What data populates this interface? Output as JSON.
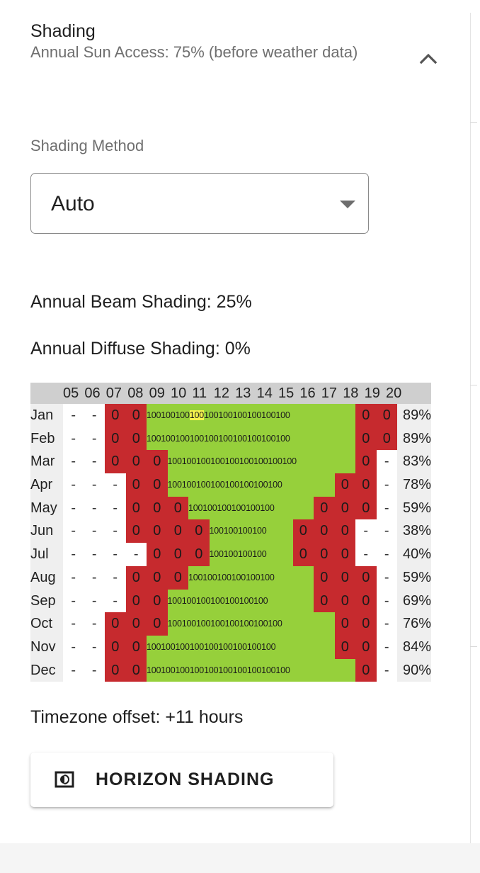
{
  "panel": {
    "title": "Shading",
    "subtitle": "Annual Sun Access: 75% (before weather data)",
    "collapse_icon": "chevron-up-icon"
  },
  "shading_method": {
    "label": "Shading Method",
    "value": "Auto"
  },
  "stats": {
    "beam": "Annual Beam Shading: 25%",
    "diffuse": "Annual Diffuse Shading: 0%"
  },
  "shade_table": {
    "hours": [
      "05",
      "06",
      "07",
      "08",
      "09",
      "10",
      "11",
      "12",
      "13",
      "14",
      "15",
      "16",
      "17",
      "18",
      "19",
      "20"
    ],
    "rows": [
      {
        "month": "Jan",
        "d_pre": 2,
        "r_pre": 2,
        "g": 10,
        "hl": 3,
        "r_post": 2,
        "d_post": 1,
        "pct": "89%"
      },
      {
        "month": "Feb",
        "d_pre": 2,
        "r_pre": 2,
        "g": 10,
        "hl": -1,
        "r_post": 2,
        "d_post": 1,
        "pct": "89%"
      },
      {
        "month": "Mar",
        "d_pre": 2,
        "r_pre": 3,
        "g": 9,
        "hl": -1,
        "r_post": 1,
        "d_post": 2,
        "pct": "83%"
      },
      {
        "month": "Apr",
        "d_pre": 3,
        "r_pre": 2,
        "g": 8,
        "hl": -1,
        "r_post": 2,
        "d_post": 2,
        "pct": "78%"
      },
      {
        "month": "May",
        "d_pre": 3,
        "r_pre": 3,
        "g": 6,
        "hl": -1,
        "r_post": 3,
        "d_post": 2,
        "pct": "59%"
      },
      {
        "month": "Jun",
        "d_pre": 3,
        "r_pre": 4,
        "g": 4,
        "hl": -1,
        "r_post": 3,
        "d_post": 3,
        "pct": "38%"
      },
      {
        "month": "Jul",
        "d_pre": 4,
        "r_pre": 3,
        "g": 4,
        "hl": -1,
        "r_post": 3,
        "d_post": 3,
        "pct": "40%"
      },
      {
        "month": "Aug",
        "d_pre": 3,
        "r_pre": 3,
        "g": 6,
        "hl": -1,
        "r_post": 3,
        "d_post": 2,
        "pct": "59%"
      },
      {
        "month": "Sep",
        "d_pre": 3,
        "r_pre": 2,
        "g": 7,
        "hl": -1,
        "r_post": 3,
        "d_post": 2,
        "pct": "69%"
      },
      {
        "month": "Oct",
        "d_pre": 2,
        "r_pre": 3,
        "g": 8,
        "hl": -1,
        "r_post": 2,
        "d_post": 2,
        "pct": "76%"
      },
      {
        "month": "Nov",
        "d_pre": 2,
        "r_pre": 2,
        "g": 9,
        "hl": -1,
        "r_post": 2,
        "d_post": 2,
        "pct": "84%"
      },
      {
        "month": "Dec",
        "d_pre": 2,
        "r_pre": 2,
        "g": 10,
        "hl": -1,
        "r_post": 1,
        "d_post": 2,
        "pct": "90%"
      }
    ],
    "colors": {
      "shaded": "#c62a2e",
      "sun": "#96d03b",
      "highlight": "#f6f34d",
      "header": "#cfcfcf",
      "side": "#efefef"
    }
  },
  "timezone": "Timezone offset: +11 hours",
  "horizon_button": {
    "label": "HORIZON SHADING",
    "icon": "horizon-shading-icon"
  }
}
